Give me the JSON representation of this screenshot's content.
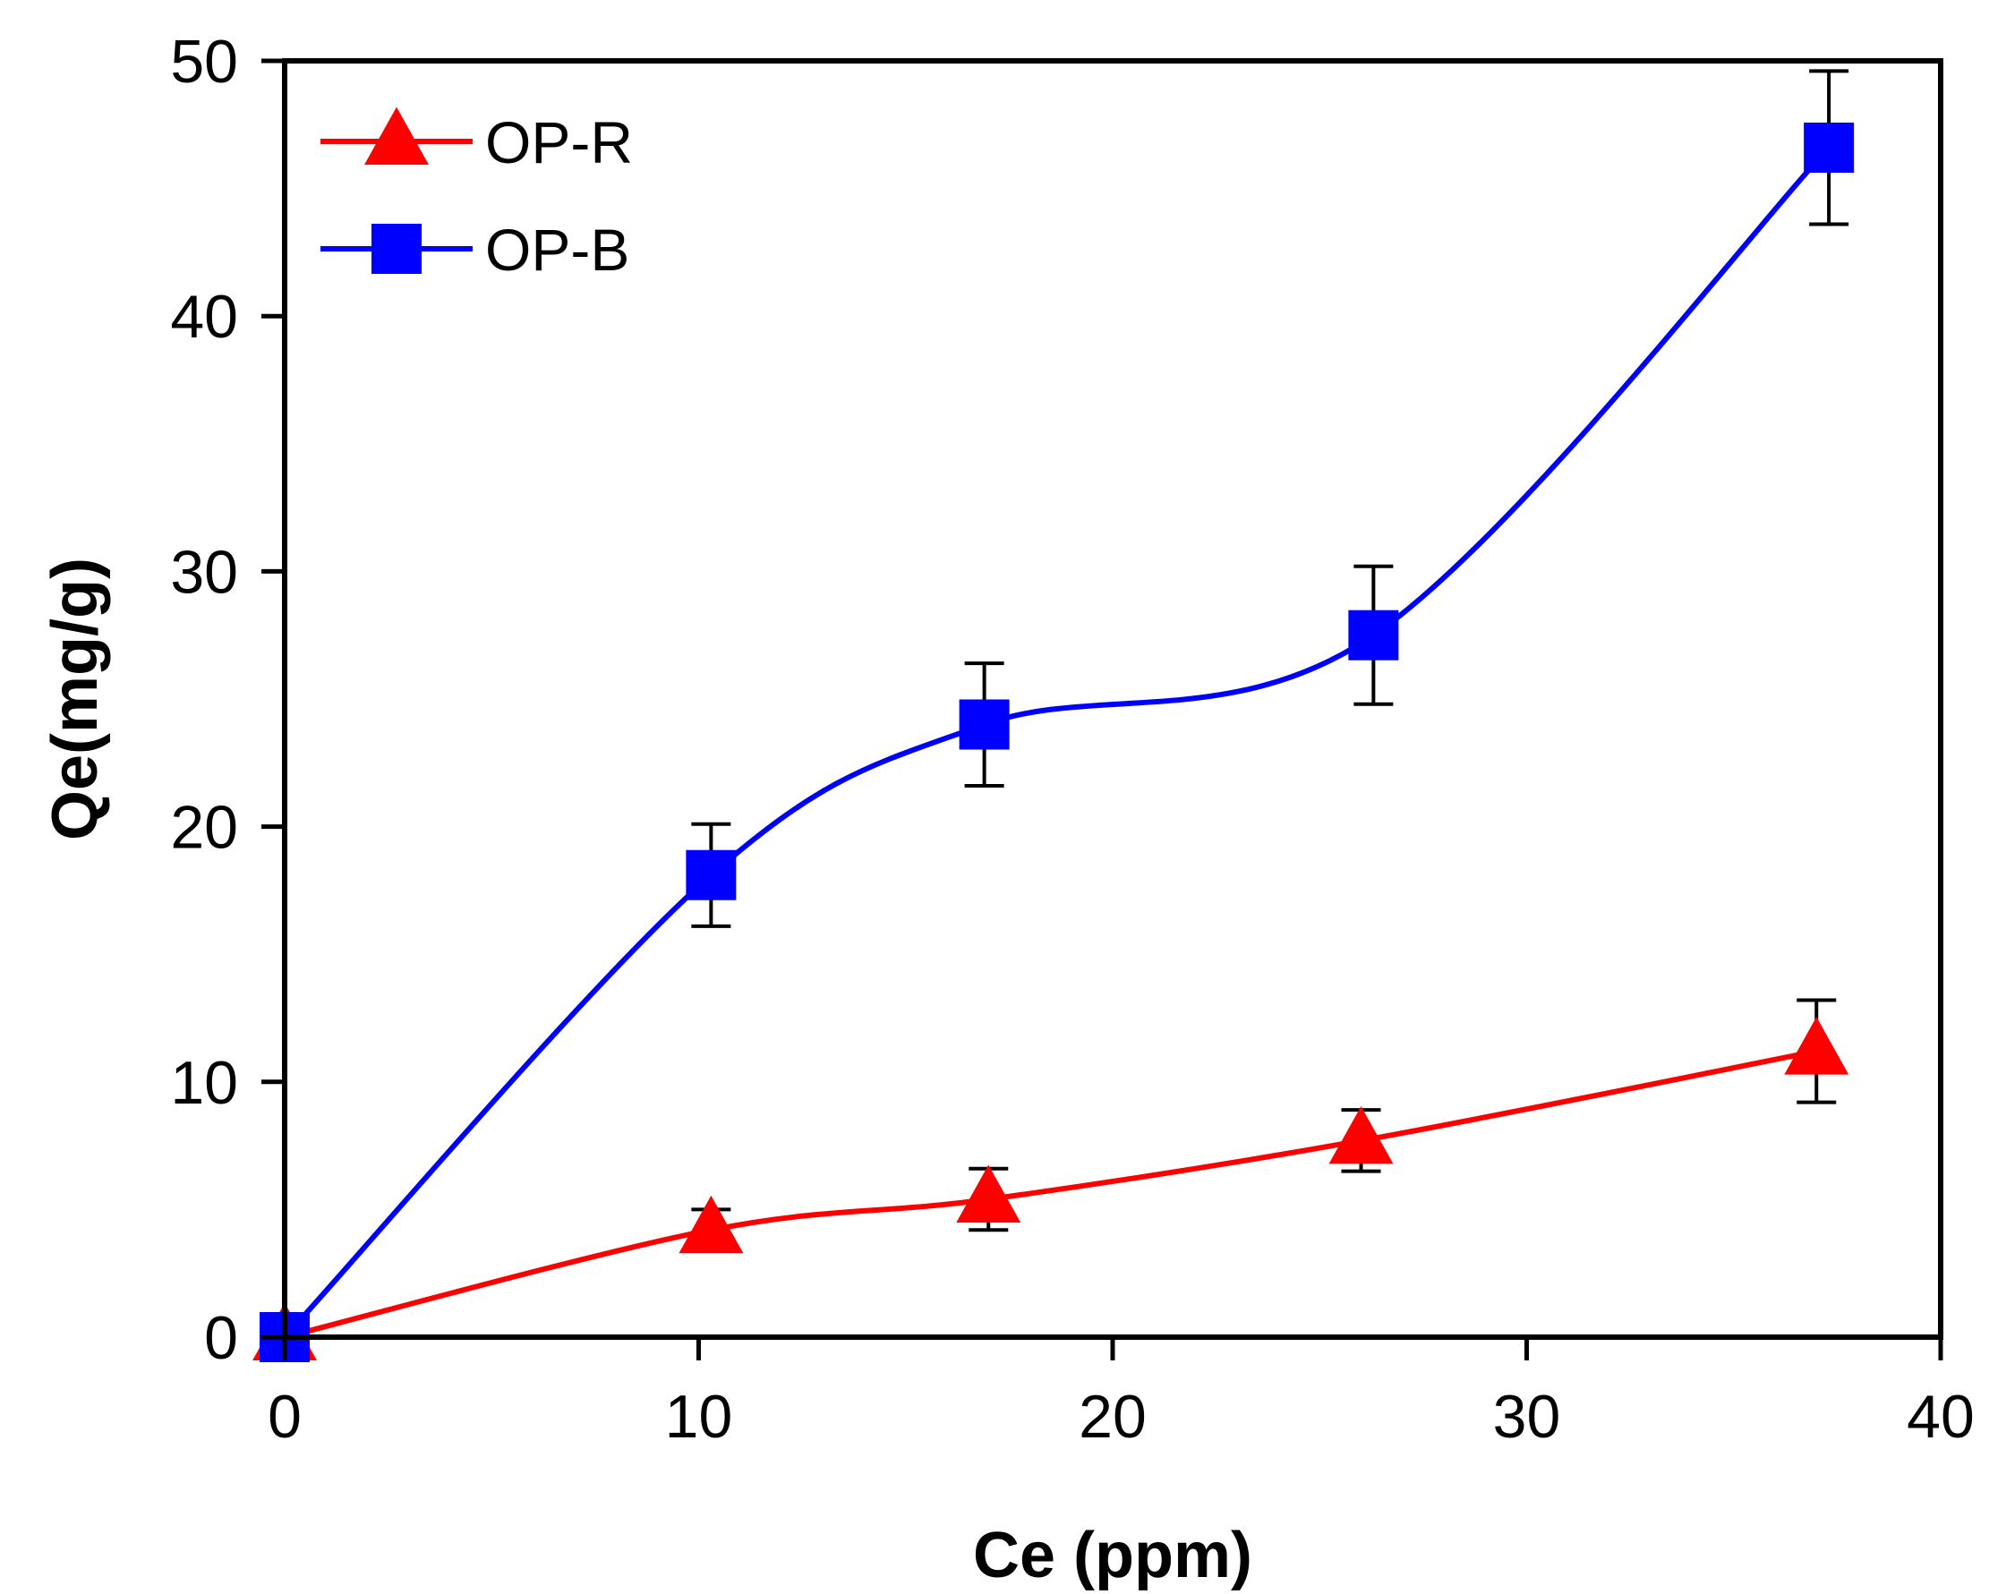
{
  "chart_data": {
    "type": "line",
    "title": "",
    "xlabel": "Ce (ppm)",
    "ylabel": "Qe(mg/g)",
    "xlim": [
      0,
      40
    ],
    "ylim": [
      0,
      50
    ],
    "xticks": [
      0,
      10,
      20,
      30,
      40
    ],
    "yticks": [
      0,
      10,
      20,
      30,
      40,
      50
    ],
    "xtick_labels": [
      "0",
      "10",
      "20",
      "30",
      "40"
    ],
    "ytick_labels": [
      "0",
      "10",
      "20",
      "30",
      "40",
      "50"
    ],
    "grid": false,
    "legend_position": "top-left",
    "smoothed": true,
    "series": [
      {
        "name": "OP-R",
        "color": "#ff0000",
        "marker": "triangle",
        "x": [
          0,
          10.3,
          17,
          26,
          37
        ],
        "y": [
          0,
          4.2,
          5.4,
          7.7,
          11.2
        ],
        "error": [
          0,
          0.8,
          1.2,
          1.2,
          2.0
        ]
      },
      {
        "name": "OP-B",
        "color": "#0000ff",
        "marker": "square",
        "x": [
          0,
          10.3,
          16.9,
          26.3,
          37.3
        ],
        "y": [
          0,
          18.1,
          24.0,
          27.5,
          46.6
        ],
        "error": [
          0,
          2.0,
          2.4,
          2.7,
          3.0
        ]
      }
    ]
  }
}
